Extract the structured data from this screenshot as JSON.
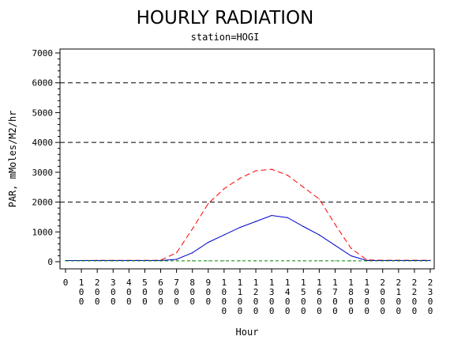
{
  "chart_data": {
    "type": "line",
    "title": "HOURLY RADIATION",
    "subtitle": "station=HOGI",
    "xlabel": "Hour",
    "ylabel": "PAR, mMoles/M2/hr",
    "x": [
      0,
      100,
      200,
      300,
      400,
      500,
      600,
      700,
      800,
      900,
      1000,
      1100,
      1200,
      1300,
      1400,
      1500,
      1600,
      1700,
      1800,
      1900,
      2000,
      2100,
      2200,
      2300
    ],
    "x_tick_labels": [
      "0",
      "100",
      "200",
      "300",
      "400",
      "500",
      "600",
      "700",
      "800",
      "900",
      "1000",
      "1100",
      "1200",
      "1300",
      "1400",
      "1500",
      "1600",
      "1700",
      "1800",
      "1900",
      "2000",
      "2100",
      "2200",
      "2300"
    ],
    "ylim": [
      0,
      7000
    ],
    "y_ticks": [
      0,
      1000,
      2000,
      3000,
      4000,
      5000,
      6000,
      7000
    ],
    "grid_lines_y": [
      2000,
      4000,
      6000
    ],
    "series": [
      {
        "color": "#ff0000",
        "style": "dashed",
        "values": [
          40,
          40,
          45,
          45,
          45,
          45,
          50,
          300,
          1100,
          1950,
          2450,
          2800,
          3050,
          3100,
          2900,
          2500,
          2100,
          1250,
          450,
          60,
          50,
          50,
          50,
          50
        ]
      },
      {
        "color": "#0000cc",
        "style": "solid",
        "values": [
          40,
          40,
          40,
          40,
          40,
          40,
          40,
          80,
          300,
          650,
          900,
          1150,
          1350,
          1550,
          1480,
          1180,
          900,
          550,
          200,
          40,
          40,
          40,
          40,
          40
        ]
      },
      {
        "color": "#008000",
        "style": "dashed",
        "values": [
          30,
          30,
          30,
          30,
          30,
          30,
          30,
          30,
          30,
          30,
          30,
          30,
          30,
          30,
          30,
          30,
          30,
          30,
          30,
          30,
          30,
          30,
          30,
          30
        ]
      }
    ]
  }
}
